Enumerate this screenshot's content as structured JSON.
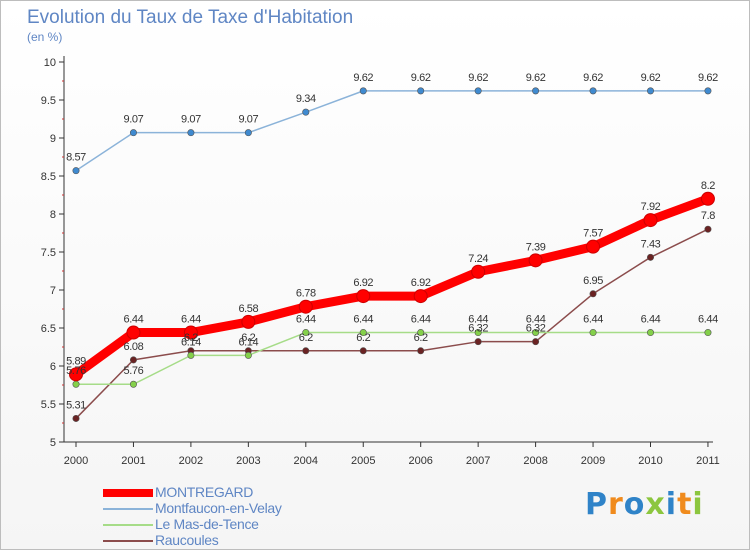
{
  "header": {
    "title": "Evolution du Taux de Taxe d'Habitation",
    "subtitle": "(en %)"
  },
  "logo": {
    "letters": [
      "P",
      "r",
      "o",
      "x",
      "i",
      "t",
      "i"
    ],
    "colors": [
      "#2f83c8",
      "#f08b1d",
      "#2f83c8",
      "#8cc63f",
      "#2f83c8",
      "#f08b1d",
      "#8cc63f"
    ]
  },
  "chart_data": {
    "type": "line",
    "title": "Evolution du Taux de Taxe d'Habitation",
    "ylabel": "(en %)",
    "xlabel": "",
    "x": [
      "2000",
      "2001",
      "2002",
      "2003",
      "2004",
      "2005",
      "2006",
      "2007",
      "2008",
      "2009",
      "2010",
      "2011"
    ],
    "ylim": [
      5,
      10
    ],
    "yticks": [
      "5",
      "5.5",
      "6",
      "6.5",
      "7",
      "7.5",
      "8",
      "8.5",
      "9",
      "9.5",
      "10"
    ],
    "grid": false,
    "legend_position": "bottom-left",
    "series": [
      {
        "name": "MONTREGARD",
        "color": "#ff0000",
        "marker_color": "#ff0000",
        "emphasis": "bold",
        "values": [
          5.89,
          6.44,
          6.44,
          6.58,
          6.78,
          6.92,
          6.92,
          7.24,
          7.39,
          7.57,
          7.92,
          8.2
        ],
        "labels": [
          "5.89",
          "6.44",
          "6.44",
          "6.58",
          "6.78",
          "6.92",
          "6.92",
          "7.24",
          "7.39",
          "7.57",
          "7.92",
          "8.2"
        ]
      },
      {
        "name": "Montfaucon-en-Velay",
        "color": "#8bb3d9",
        "marker_color": "#3f8ad0",
        "emphasis": "normal",
        "values": [
          8.57,
          9.07,
          9.07,
          9.07,
          9.34,
          9.62,
          9.62,
          9.62,
          9.62,
          9.62,
          9.62,
          9.62
        ],
        "labels": [
          "8.57",
          "9.07",
          "9.07",
          "9.07",
          "9.34",
          "9.62",
          "9.62",
          "9.62",
          "9.62",
          "9.62",
          "9.62",
          "9.62"
        ]
      },
      {
        "name": "Le Mas-de-Tence",
        "color": "#a6dc88",
        "marker_color": "#84d04a",
        "emphasis": "normal",
        "values": [
          5.76,
          5.76,
          6.14,
          6.14,
          6.44,
          6.44,
          6.44,
          6.44,
          6.44,
          6.44,
          6.44,
          6.44
        ],
        "labels": [
          "5.76",
          "5.76",
          "6.14",
          "6.14",
          "6.44",
          "6.44",
          "6.44",
          "6.44",
          "6.44",
          "6.44",
          "6.44",
          "6.44"
        ]
      },
      {
        "name": "Raucoules",
        "color": "#8b4c4c",
        "marker_color": "#6b2323",
        "emphasis": "normal",
        "values": [
          5.31,
          6.08,
          6.2,
          6.2,
          6.2,
          6.2,
          6.2,
          6.32,
          6.32,
          6.95,
          7.43,
          7.8
        ],
        "labels": [
          "5.31",
          "6.08",
          "6.2",
          "6.2",
          "6.2",
          "6.2",
          "6.2",
          "6.32",
          "6.32",
          "6.95",
          "7.43",
          "7.8"
        ]
      }
    ]
  }
}
